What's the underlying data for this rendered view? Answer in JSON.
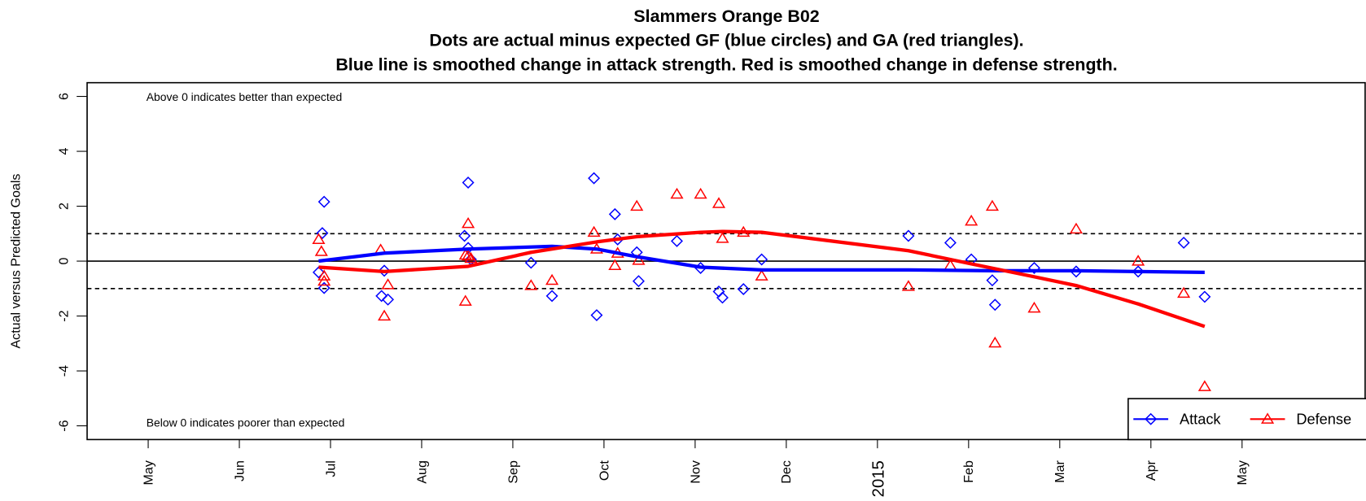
{
  "chart_data": {
    "type": "scatter",
    "title": "Slammers Orange B02",
    "subtitle": [
      "Dots are actual minus expected GF (blue circles) and GA (red triangles).",
      "Blue line is smoothed change in attack strength. Red is smoothed change in defense strength."
    ],
    "y_label": "Actual versus Predicted Goals",
    "annotations": [
      "Above 0 indicates better than expected",
      "Below 0 indicates poorer than expected"
    ],
    "xlim": [
      -0.67,
      13.35
    ],
    "xticks": [
      {
        "value": 0,
        "label": "May"
      },
      {
        "value": 1,
        "label": "Jun"
      },
      {
        "value": 2,
        "label": "Jul"
      },
      {
        "value": 3,
        "label": "Aug"
      },
      {
        "value": 4,
        "label": "Sep"
      },
      {
        "value": 5,
        "label": "Oct"
      },
      {
        "value": 6,
        "label": "Nov"
      },
      {
        "value": 7,
        "label": "Dec"
      },
      {
        "value": 8,
        "label": "2015"
      },
      {
        "value": 9,
        "label": "Feb"
      },
      {
        "value": 10,
        "label": "Mar"
      },
      {
        "value": 11,
        "label": "Apr"
      },
      {
        "value": 12,
        "label": "May"
      }
    ],
    "ylim": [
      -6.5,
      6.5
    ],
    "yticks": [
      -6,
      -4,
      -2,
      0,
      2,
      4,
      6
    ],
    "hlines": [
      -1,
      0,
      1
    ],
    "legend": "bottomright",
    "series": [
      {
        "name": "Attack",
        "color": "#0000ff",
        "marker": "diamond",
        "x": [
          1.93,
          1.91,
          1.87,
          1.93,
          2.59,
          2.56,
          2.63,
          3.51,
          3.47,
          3.51,
          3.54,
          4.2,
          4.43,
          4.89,
          4.92,
          5.12,
          5.15,
          5.36,
          5.38,
          5.8,
          6.06,
          6.26,
          6.3,
          6.53,
          6.73,
          8.34,
          8.8,
          9.03,
          9.26,
          9.29,
          9.72,
          10.18,
          10.86,
          11.36,
          11.59
        ],
        "values": [
          2.16,
          1.02,
          -0.41,
          -0.98,
          -0.35,
          -1.27,
          -1.4,
          2.86,
          0.92,
          0.48,
          0.06,
          -0.06,
          -1.27,
          3.02,
          -1.97,
          1.71,
          0.79,
          0.32,
          -0.73,
          0.73,
          -0.25,
          -1.11,
          -1.33,
          -1.02,
          0.06,
          0.92,
          0.67,
          0.06,
          -0.7,
          -1.59,
          -0.25,
          -0.38,
          -0.38,
          0.67,
          -1.3
        ],
        "smooth": {
          "x": [
            1.87,
            2.59,
            3.51,
            4.43,
            4.92,
            5.36,
            6.06,
            6.73,
            8.34,
            9.26,
            10.18,
            10.86,
            11.59
          ],
          "values": [
            0.0,
            0.29,
            0.44,
            0.54,
            0.44,
            0.16,
            -0.22,
            -0.32,
            -0.32,
            -0.35,
            -0.35,
            -0.38,
            -0.41
          ]
        }
      },
      {
        "name": "Defense",
        "color": "#ff0000",
        "marker": "triangle",
        "x": [
          1.87,
          1.9,
          1.93,
          1.93,
          2.55,
          2.63,
          2.59,
          3.51,
          3.48,
          3.51,
          3.54,
          3.48,
          4.2,
          4.43,
          4.89,
          4.92,
          5.12,
          5.15,
          5.36,
          5.38,
          5.8,
          6.06,
          6.26,
          6.3,
          6.53,
          6.73,
          8.34,
          8.8,
          9.03,
          9.26,
          9.29,
          9.72,
          10.18,
          10.86,
          11.36,
          11.59
        ],
        "values": [
          0.79,
          0.35,
          -0.54,
          -0.73,
          0.41,
          -0.86,
          -2.0,
          1.37,
          0.22,
          0.19,
          0.1,
          -1.46,
          -0.89,
          -0.7,
          1.05,
          0.44,
          -0.16,
          0.29,
          2.0,
          0.03,
          2.44,
          2.44,
          2.1,
          0.83,
          1.05,
          -0.54,
          -0.92,
          -0.16,
          1.46,
          2.0,
          -2.98,
          -1.71,
          1.17,
          0.0,
          -1.17,
          -4.57
        ],
        "smooth": {
          "x": [
            1.87,
            2.59,
            3.51,
            4.2,
            4.92,
            5.36,
            6.06,
            6.3,
            6.73,
            8.34,
            9.03,
            9.72,
            10.18,
            10.86,
            11.59
          ],
          "values": [
            -0.22,
            -0.38,
            -0.19,
            0.32,
            0.7,
            0.89,
            1.05,
            1.08,
            1.05,
            0.38,
            -0.1,
            -0.57,
            -0.89,
            -1.56,
            -2.38
          ]
        }
      }
    ]
  }
}
